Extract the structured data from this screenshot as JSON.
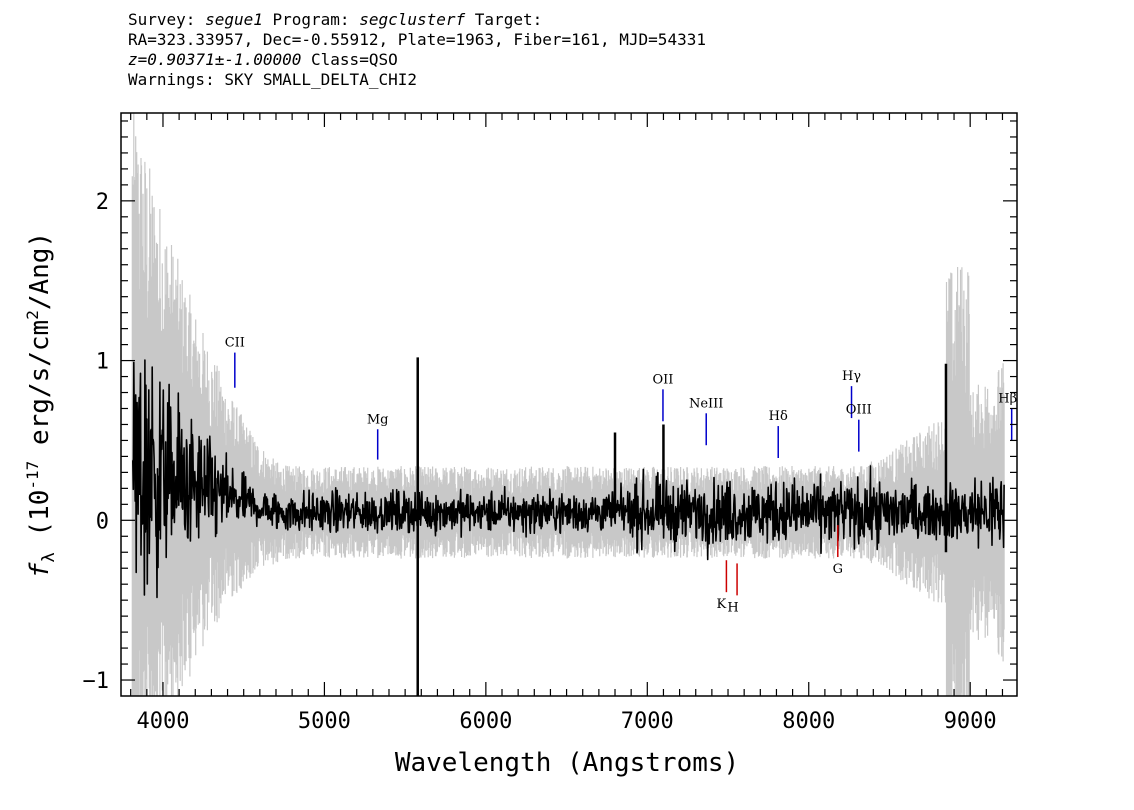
{
  "header": {
    "line1": {
      "survey_label": "Survey: ",
      "survey": "segue1",
      "program_label": " Program: ",
      "program": "segclusterf",
      "target_label": " Target:"
    },
    "line2": "RA=323.33957, Dec=-0.55912, Plate=1963, Fiber=161, MJD=54331",
    "line3": {
      "z": "z=0.90371±-1.00000",
      "class_text": " Class=QSO"
    },
    "line4": "Warnings: SKY SMALL_DELTA_CHI2"
  },
  "chart_data": {
    "type": "line",
    "xlabel": "Wavelength (Angstroms)",
    "ylabel_prefix": "f",
    "ylabel_sub": "λ",
    "ylabel_main": " (10",
    "ylabel_exp": "-17",
    "ylabel_rest": " erg/s/cm",
    "ylabel_exp2": "2",
    "ylabel_end": "/Ang)",
    "xlim": [
      3740,
      9290
    ],
    "ylim": [
      -1.1,
      2.55
    ],
    "x_ticks": [
      4000,
      5000,
      6000,
      7000,
      8000,
      9000
    ],
    "x_tick_labels": [
      "4000",
      "5000",
      "6000",
      "7000",
      "8000",
      "9000"
    ],
    "y_ticks": [
      -1,
      0,
      1,
      2
    ],
    "y_tick_labels": [
      "−1",
      "0",
      "1",
      "2"
    ],
    "series": [
      {
        "color": "#c8c8c8",
        "x_range": [
          3810,
          9210
        ],
        "envelope_base": 0.08,
        "note_style": "error"
      },
      {
        "color": "#000000",
        "x_range": [
          3810,
          9210
        ]
      }
    ],
    "features": [
      {
        "x": 5578,
        "y_top": 1.02,
        "y_bottom": -1.1
      },
      {
        "x": 6800,
        "y_top": 0.55,
        "y_bottom": 0.05
      },
      {
        "x": 7100,
        "y_top": 0.6,
        "y_bottom": 0.0
      },
      {
        "x": 8850,
        "y_top": 0.98,
        "y_bottom": -0.2
      }
    ],
    "emission_lines": [
      {
        "label": "CII",
        "x": 4445,
        "y_top": 1.05,
        "y_bottom": 0.83,
        "color": "#0000cc"
      },
      {
        "label": "Mg",
        "x": 5330,
        "y_top": 0.57,
        "y_bottom": 0.38,
        "color": "#0000cc"
      },
      {
        "label": "OII",
        "x": 7097,
        "y_top": 0.82,
        "y_bottom": 0.62,
        "color": "#0000cc"
      },
      {
        "label": "NeIII",
        "x": 7365,
        "y_top": 0.67,
        "y_bottom": 0.47,
        "color": "#0000cc"
      },
      {
        "label": "Hδ",
        "x": 7811,
        "y_top": 0.59,
        "y_bottom": 0.39,
        "color": "#0000cc"
      },
      {
        "label": "Hγ",
        "x": 8265,
        "y_top": 0.84,
        "y_bottom": 0.64,
        "color": "#0000cc"
      },
      {
        "label": "OIII",
        "x": 8310,
        "y_top": 0.63,
        "y_bottom": 0.43,
        "color": "#0000cc"
      },
      {
        "label": "Hβ",
        "x": 9257,
        "y_top": 0.7,
        "y_bottom": 0.5,
        "color": "#0000cc"
      }
    ],
    "absorption_lines": [
      {
        "label": "K",
        "x": 7490,
        "y_top": -0.25,
        "y_bottom": -0.45,
        "color": "#cc0000"
      },
      {
        "label": "H",
        "x": 7556,
        "y_top": -0.27,
        "y_bottom": -0.47,
        "color": "#cc0000"
      },
      {
        "label": "G",
        "x": 8180,
        "y_top": -0.03,
        "y_bottom": -0.23,
        "color": "#cc0000"
      }
    ]
  }
}
